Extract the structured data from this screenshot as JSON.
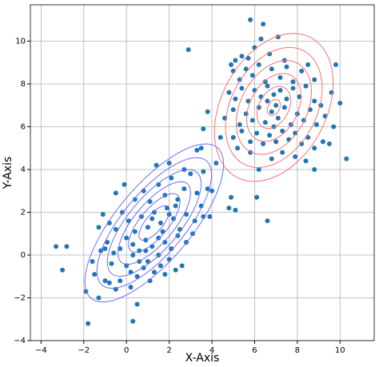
{
  "chart_data": {
    "type": "scatter",
    "xlabel": "X-Axis",
    "ylabel": "Y-Axis",
    "xlim": [
      -4.5,
      11.6
    ],
    "ylim": [
      -4,
      11.7
    ],
    "xticks": [
      {
        "value": -4,
        "label": "−4"
      },
      {
        "value": -2,
        "label": "−2"
      },
      0,
      2,
      4,
      6,
      8,
      10
    ],
    "yticks": [
      {
        "value": -4,
        "label": "−4"
      },
      {
        "value": -2,
        "label": "−2"
      },
      0,
      2,
      4,
      6,
      8,
      10
    ],
    "grid": true,
    "series": [
      {
        "color": "#1f77b4",
        "x": [
          -1,
          -0.8,
          -0.5,
          -0.3,
          0,
          0.2,
          0.5,
          0.8,
          1,
          1.3,
          1.6,
          2,
          2.3,
          2.6,
          -1.2,
          -1.5,
          -0.9,
          -0.6,
          -0.3,
          0,
          0.3,
          0.6,
          0.9,
          1.2,
          1.5,
          1.8,
          2.1,
          2.4,
          2.8,
          3.1,
          -1.1,
          -0.8,
          -0.5,
          -0.2,
          0.1,
          0.4,
          0.7,
          1,
          1.3,
          1.6,
          1.9,
          2.2,
          2.5,
          2.8,
          3.2,
          3.5,
          -0.5,
          -0.1,
          0.4,
          0.8,
          1.1,
          1.5,
          1.8,
          2.1,
          2.4,
          2.7,
          3,
          1.4,
          2,
          2.7,
          3.6,
          3.8,
          -1.6,
          -1.9,
          -1.3,
          0.2,
          1.1,
          1.8,
          3.3,
          0.6,
          1.7,
          2,
          1.2,
          0.9,
          2.3,
          1.5,
          0.3,
          -0.7,
          3.6,
          4,
          -1.3,
          -1,
          5.1,
          5.4,
          5.7,
          6,
          6.3,
          6.7,
          7.1,
          7.4,
          5,
          5.3,
          5.6,
          5.9,
          6.2,
          6.5,
          6.8,
          7.2,
          7.5,
          7.8,
          8.2,
          8.5,
          4.8,
          5.1,
          5.4,
          5.7,
          6,
          6.3,
          6.6,
          6.9,
          7.2,
          7.5,
          7.8,
          8.1,
          8.4,
          8.8,
          9.1,
          9.6,
          10,
          4.6,
          5,
          5.3,
          5.6,
          5.9,
          6.2,
          6.5,
          6.8,
          7.1,
          7.4,
          7.7,
          8,
          8.3,
          8.6,
          8.9,
          9.3,
          9.7,
          5,
          5.4,
          5.8,
          6.1,
          6.4,
          6.7,
          7,
          7.3,
          7.6,
          7.9,
          8.2,
          8.5,
          8.8,
          9.2,
          9.5,
          5.8,
          6.2,
          6.8,
          7.3,
          7.9,
          8.4,
          8.8,
          9.8,
          8.8,
          4.9,
          5.2,
          4.4,
          7,
          6.6,
          6.9,
          -3.3,
          -2.8,
          -3,
          -1.8,
          0.3,
          2.9,
          5.8,
          6.4,
          10.3,
          6.6,
          6.1,
          4.9,
          4.8,
          5.1,
          3.3,
          3.5,
          3.8,
          3.6,
          4.2,
          3.9,
          0.5
        ],
        "y": [
          -1.2,
          -1.3,
          -1.6,
          -1.2,
          -0.5,
          -0.8,
          -1,
          -0.6,
          -0.3,
          -0.8,
          -0.5,
          -0.2,
          -0.7,
          -0.5,
          0.2,
          -0.9,
          0.6,
          0.1,
          0.3,
          0.8,
          0.5,
          0.2,
          0.7,
          0.4,
          0,
          0.6,
          0.3,
          0.9,
          0.6,
          1,
          1.9,
          1.5,
          1.2,
          2,
          1.6,
          1.1,
          1.8,
          1.3,
          2,
          1.5,
          2.2,
          1.7,
          1.2,
          1.9,
          1.6,
          2.3,
          2.9,
          3.3,
          2.6,
          3,
          2.5,
          3.3,
          2.8,
          3.6,
          2.6,
          3.1,
          3.8,
          4.2,
          4.3,
          4,
          3.9,
          3.1,
          -0.3,
          -1.7,
          -2,
          -1.5,
          -1.2,
          -0.9,
          2.9,
          -0.3,
          1.1,
          1.9,
          1.7,
          0.2,
          2.3,
          0.8,
          0,
          -0.4,
          1.8,
          3,
          1.3,
          0.3,
          9.1,
          9.3,
          9.2,
          9.7,
          10.1,
          9.4,
          10.2,
          9.1,
          8.6,
          8.2,
          8.7,
          8.4,
          8.9,
          8.1,
          8.7,
          8.3,
          8.8,
          8.1,
          8.6,
          8.9,
          7.6,
          7.3,
          7.8,
          7.2,
          7.7,
          7.4,
          7.9,
          7.5,
          7.7,
          7.3,
          7.8,
          7.4,
          7.9,
          7.2,
          7,
          7.6,
          7.1,
          6.4,
          6.8,
          6.1,
          6.6,
          6.3,
          6.9,
          6.2,
          6.7,
          6.4,
          6.9,
          6.1,
          6.6,
          6.3,
          6.8,
          6.1,
          6.5,
          6,
          5.5,
          5.8,
          5.3,
          5.7,
          5.2,
          5.6,
          5.3,
          5.8,
          5.4,
          5.7,
          5.2,
          5.5,
          5,
          5.3,
          5.2,
          4.8,
          4,
          4.5,
          4.8,
          4.6,
          4.4,
          4,
          8.9,
          8.2,
          8.9,
          5,
          5.5,
          7,
          7.2,
          6,
          0.4,
          0.4,
          -0.7,
          -3.2,
          -3.1,
          9.6,
          11,
          10.8,
          4.5,
          1.6,
          2.7,
          2.7,
          2.2,
          2.1,
          4.9,
          5,
          6.7,
          5.9,
          4.3,
          1.8,
          -2.3
        ]
      }
    ],
    "contours": [
      {
        "color": "#6b6bff",
        "center": [
          1.3,
          1.5
        ],
        "angle": 50,
        "axes": [
          [
            4.6,
            1.75
          ],
          [
            3.8,
            1.45
          ],
          [
            3.1,
            1.2
          ],
          [
            2.4,
            0.93
          ],
          [
            1.7,
            0.66
          ],
          [
            1.0,
            0.4
          ]
        ]
      },
      {
        "color": "#ff7070",
        "center": [
          6.9,
          6.9
        ],
        "angle": 62,
        "axes": [
          [
            3.7,
            2.45
          ],
          [
            3.0,
            2.0
          ],
          [
            2.35,
            1.55
          ],
          [
            1.7,
            1.12
          ],
          [
            1.05,
            0.7
          ],
          [
            0.4,
            0.27
          ]
        ]
      }
    ]
  }
}
